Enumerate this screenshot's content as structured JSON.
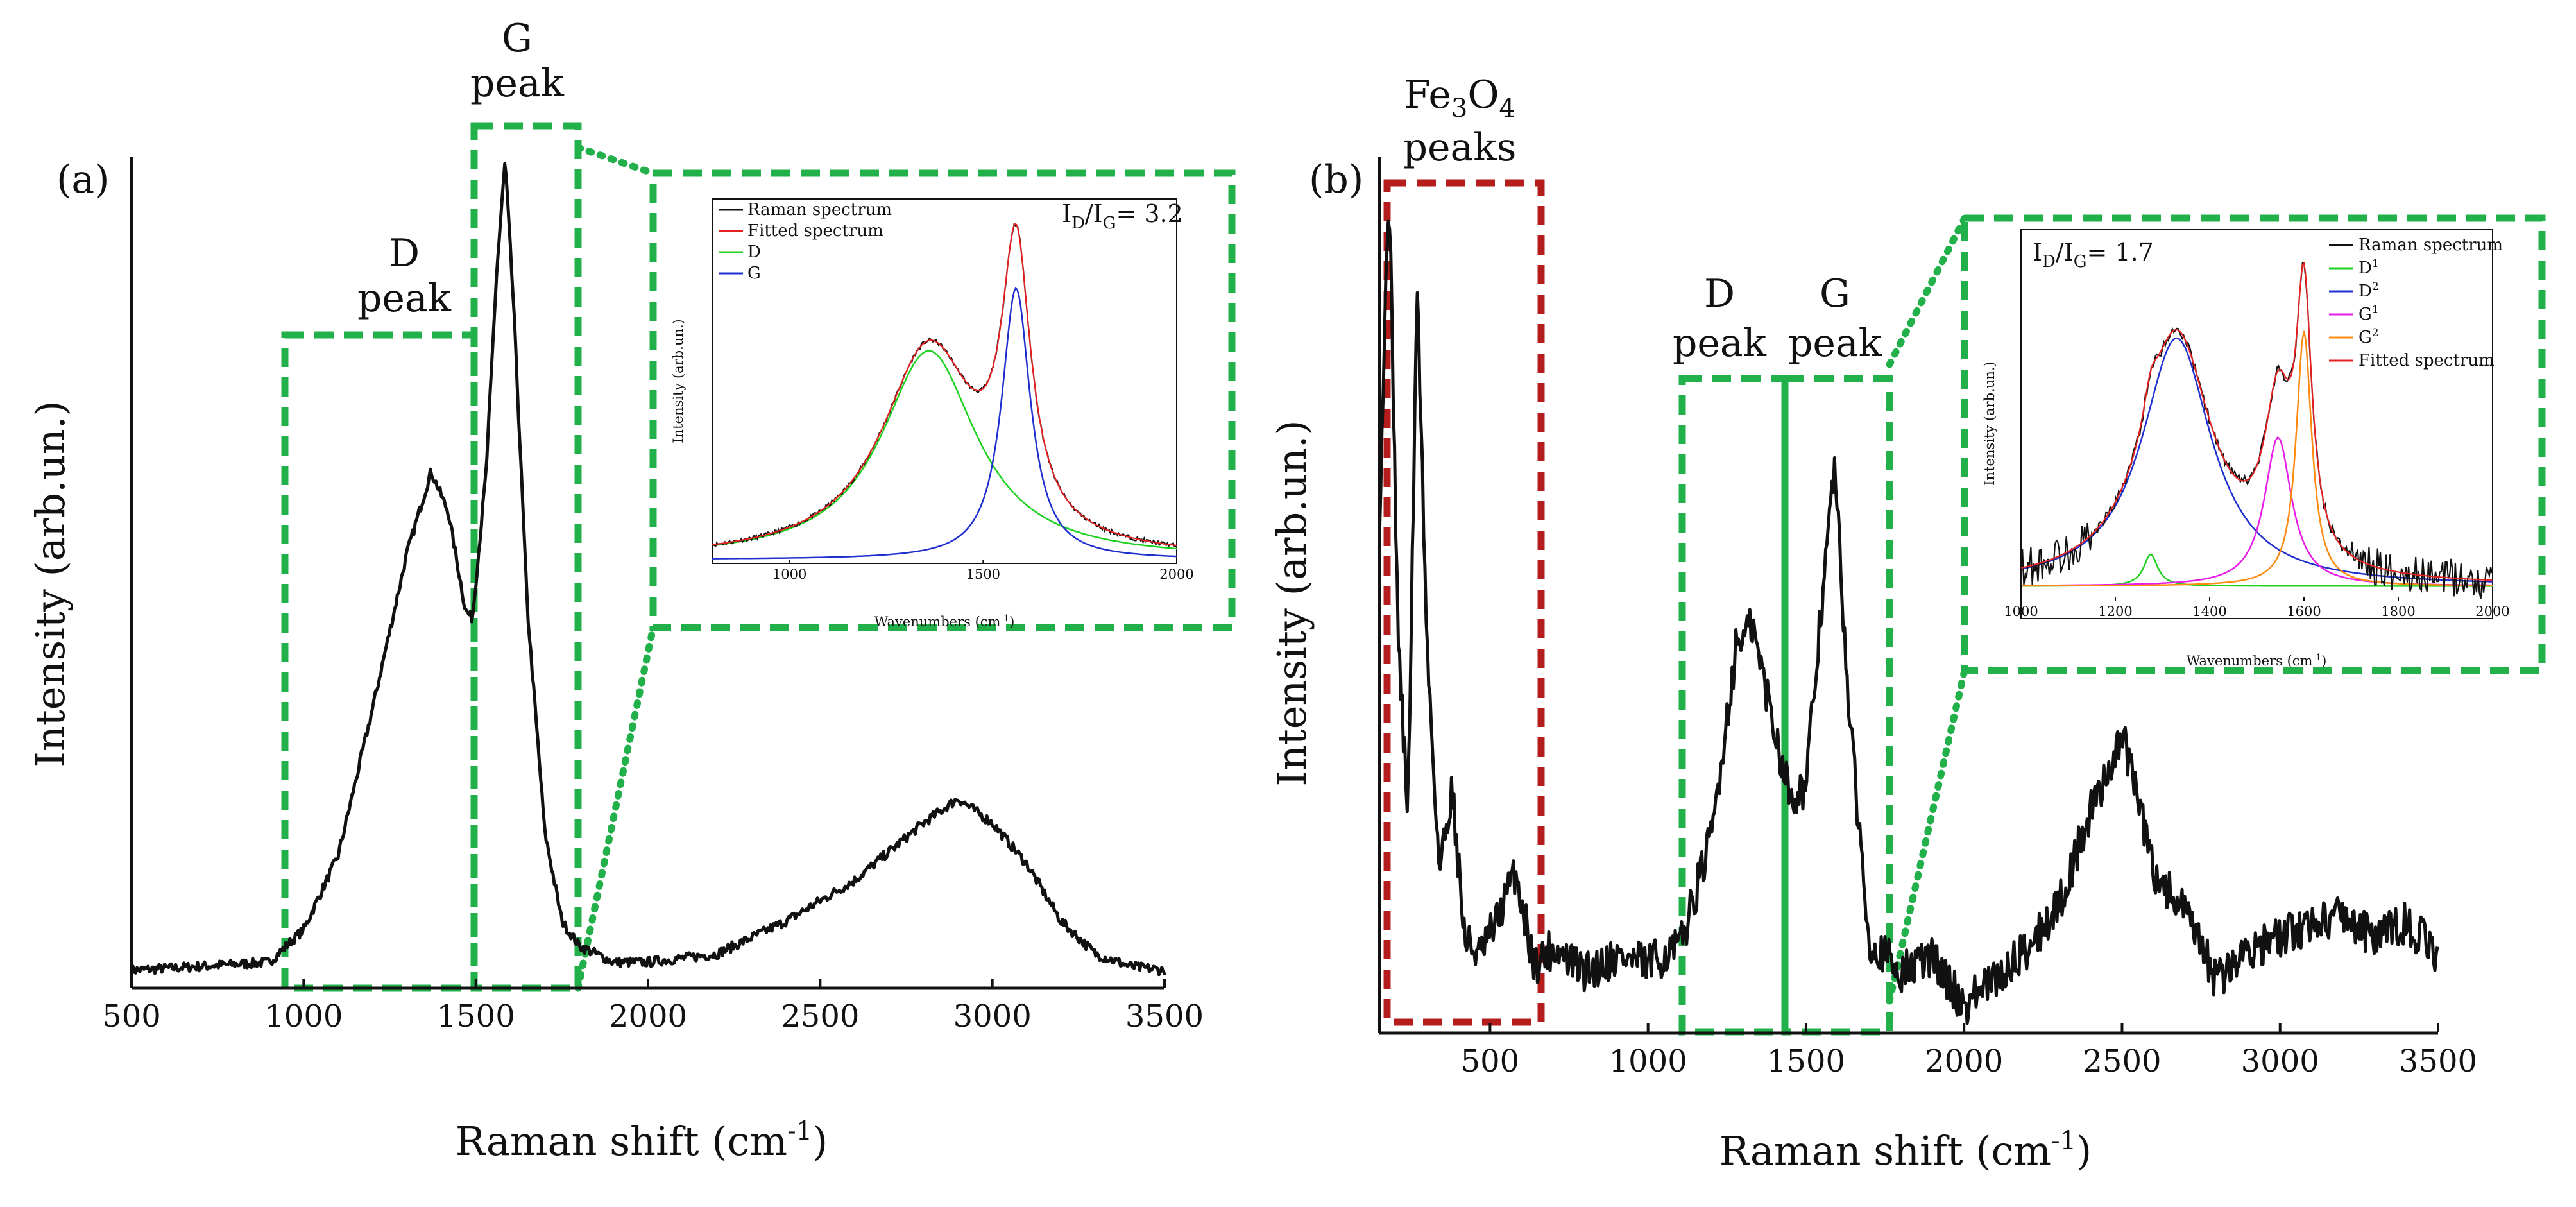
{
  "colors": {
    "spectrum": "#111111",
    "box_green": "#22b04a",
    "box_red": "#b51c1c",
    "fit_red": "#e52222",
    "comp_green": "#1fd11f",
    "comp_blue": "#2030d0",
    "comp_magenta": "#e81ee8",
    "comp_orange": "#ff8a10"
  },
  "chart_data": [
    {
      "type": "line",
      "panel_label": "(a)",
      "title": "",
      "xlabel": "Raman shift (cm",
      "xlabel_sup": "-1",
      "xlabel_end": ")",
      "ylabel": "Intensity (arb.un.)",
      "xlim": [
        500,
        3500
      ],
      "ylim": [
        0,
        1.0
      ],
      "xticks": [
        500,
        1000,
        1500,
        2000,
        2500,
        3000,
        3500
      ],
      "xtick_labels": [
        "500",
        "1000",
        "1500",
        "2000",
        "2500",
        "3000",
        "3500"
      ],
      "series": [
        {
          "name": "Raman spectrum",
          "x": [
            500,
            700,
            900,
            1000,
            1100,
            1200,
            1300,
            1370,
            1420,
            1470,
            1490,
            1530,
            1560,
            1585,
            1610,
            1650,
            1700,
            1750,
            1800,
            1900,
            2000,
            2200,
            2400,
            2600,
            2800,
            2900,
            3000,
            3100,
            3200,
            3300,
            3400,
            3500
          ],
          "y": [
            0.01,
            0.015,
            0.02,
            0.06,
            0.15,
            0.33,
            0.52,
            0.62,
            0.57,
            0.45,
            0.44,
            0.62,
            0.86,
            1.0,
            0.82,
            0.45,
            0.18,
            0.07,
            0.04,
            0.02,
            0.02,
            0.03,
            0.07,
            0.12,
            0.19,
            0.22,
            0.19,
            0.14,
            0.07,
            0.03,
            0.015,
            0.01
          ]
        }
      ],
      "annotations": [
        {
          "label": "D",
          "label2": "peak",
          "x_range": [
            940,
            1490
          ],
          "box_top": 0.79
        },
        {
          "label": "G",
          "label2": "peak",
          "x_range": [
            1490,
            1790
          ],
          "box_top": 1.04
        }
      ],
      "inset": {
        "ratio_label": "I",
        "ratio_sub1": "D",
        "ratio_mid": "/I",
        "ratio_sub2": "G",
        "ratio_value": "= 3.2",
        "xlabel": "Wavenumbers (cm",
        "xlabel_sup": "-1",
        "xlabel_end": ")",
        "ylabel": "Intensity (arb.un.)",
        "xlim": [
          800,
          2000
        ],
        "ylim": [
          0,
          1.0
        ],
        "xticks": [
          1000,
          1500,
          2000
        ],
        "xtick_labels": [
          "1000",
          "1500",
          "2000"
        ],
        "series": [
          {
            "name": "Raman spectrum",
            "color": "#111111",
            "center": null
          },
          {
            "name": "Fitted spectrum",
            "color": "#e52222",
            "center": null
          },
          {
            "name": "D",
            "color": "#1fd11f",
            "center": 1360,
            "amp": 0.6,
            "width": 150
          },
          {
            "name": "G",
            "color": "#2030d0",
            "center": 1585,
            "amp": 0.78,
            "width": 45
          }
        ]
      }
    },
    {
      "type": "line",
      "panel_label": "(b)",
      "title": "",
      "xlabel": "Raman shift (cm",
      "xlabel_sup": "-1",
      "xlabel_end": ")",
      "ylabel": "Intensity (arb.un.)",
      "xlim": [
        150,
        3500
      ],
      "ylim": [
        0,
        1.0
      ],
      "xticks": [
        500,
        1000,
        1500,
        2000,
        2500,
        3000,
        3500
      ],
      "xtick_labels": [
        "500",
        "1000",
        "1500",
        "2000",
        "2500",
        "3000",
        "3500"
      ],
      "series": [
        {
          "name": "Raman spectrum",
          "x": [
            150,
            180,
            210,
            240,
            270,
            300,
            340,
            380,
            420,
            470,
            520,
            580,
            640,
            700,
            800,
            900,
            1000,
            1100,
            1200,
            1280,
            1330,
            1400,
            1450,
            1500,
            1550,
            1590,
            1640,
            1700,
            1800,
            1900,
            2000,
            2050,
            2100,
            2200,
            2300,
            2400,
            2500,
            2530,
            2600,
            2700,
            2800,
            2900,
            3000,
            3100,
            3200,
            3300,
            3400,
            3500
          ],
          "y": [
            0.6,
            1.0,
            0.45,
            0.25,
            0.88,
            0.45,
            0.18,
            0.28,
            0.1,
            0.08,
            0.12,
            0.18,
            0.07,
            0.09,
            0.06,
            0.08,
            0.07,
            0.09,
            0.22,
            0.45,
            0.47,
            0.35,
            0.27,
            0.28,
            0.5,
            0.66,
            0.35,
            0.1,
            0.06,
            0.08,
            0.02,
            0.04,
            0.05,
            0.09,
            0.14,
            0.25,
            0.34,
            0.3,
            0.18,
            0.13,
            0.05,
            0.09,
            0.1,
            0.12,
            0.13,
            0.1,
            0.12,
            0.08
          ]
        }
      ],
      "annotations": [
        {
          "label": "Fe",
          "label_sub1": "3",
          "label_mid": "O",
          "label_sub2": "4",
          "label2": "peaks",
          "x_range": [
            170,
            660
          ],
          "color": "red"
        },
        {
          "label": "D",
          "label2": "peak",
          "x_range": [
            1110,
            1440
          ]
        },
        {
          "label": "G",
          "label2": "peak",
          "x_range": [
            1440,
            1770
          ]
        }
      ],
      "inset": {
        "ratio_label": "I",
        "ratio_sub1": "D",
        "ratio_mid": "/I",
        "ratio_sub2": "G",
        "ratio_value": "= 1.7",
        "xlabel": "Wavenumbers (cm",
        "xlabel_sup": "-1",
        "xlabel_end": ")",
        "ylabel": "Intensity (arb.un.)",
        "xlim": [
          1000,
          2000
        ],
        "ylim": [
          0,
          1.0
        ],
        "xticks": [
          1000,
          1200,
          1400,
          1600,
          1800,
          2000
        ],
        "xtick_labels": [
          "1000",
          "1200",
          "1400",
          "1600",
          "1800",
          "2000"
        ],
        "series": [
          {
            "name": "Raman spectrum",
            "sup": "",
            "color": "#111111"
          },
          {
            "name": "D",
            "sup": "1",
            "color": "#1fd11f",
            "center": 1275,
            "amp": 0.09,
            "width": 18
          },
          {
            "name": "D",
            "sup": "2",
            "color": "#2030d0",
            "center": 1330,
            "amp": 0.7,
            "width": 90
          },
          {
            "name": "G",
            "sup": "1",
            "color": "#e81ee8",
            "center": 1545,
            "amp": 0.42,
            "width": 35
          },
          {
            "name": "G",
            "sup": "2",
            "color": "#ff8a10",
            "center": 1600,
            "amp": 0.72,
            "width": 20
          },
          {
            "name": "Fitted spectrum",
            "sup": "",
            "color": "#e52222"
          }
        ]
      }
    }
  ]
}
